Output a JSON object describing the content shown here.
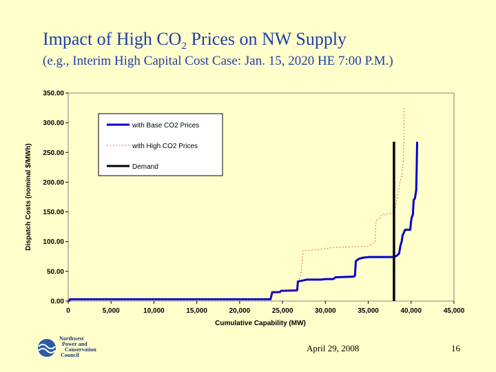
{
  "slide": {
    "title_main": "Impact of High CO",
    "title_sub": "2",
    "title_tail": " Prices on NW Supply",
    "subtitle": "(e.g., Interim High Capital Cost Case: Jan. 15, 2020 HE 7:00 P.M.)",
    "date": "April 29, 2008",
    "page_number": "16",
    "logo_lines": [
      "Northwest",
      "Power and",
      "Conservation",
      "Council"
    ]
  },
  "colors": {
    "plot_bg": "#ffffcc",
    "base_series": "#0000cc",
    "high_series": "#e0301e",
    "demand": "#000000",
    "title": "#1f3fa6"
  },
  "chart_data": {
    "type": "line",
    "xlabel": "Cumulative Capability (MW)",
    "ylabel": "Dispatch Costs (nominal $/MWh)",
    "xlim": [
      0,
      45000
    ],
    "ylim": [
      0,
      350
    ],
    "x_ticks": [
      "0",
      "5,000",
      "10,000",
      "15,000",
      "20,000",
      "25,000",
      "30,000",
      "35,000",
      "40,000",
      "45,000"
    ],
    "y_ticks": [
      "0.00",
      "50.00",
      "100.00",
      "150.00",
      "200.00",
      "250.00",
      "300.00",
      "350.00"
    ],
    "legend_position": "top-left",
    "series": [
      {
        "name": "with Base CO2 Prices",
        "style": "solid",
        "points": [
          [
            0,
            0
          ],
          [
            100,
            0
          ],
          [
            200,
            3
          ],
          [
            23600,
            3
          ],
          [
            23800,
            15
          ],
          [
            24700,
            15
          ],
          [
            24800,
            17
          ],
          [
            26700,
            18
          ],
          [
            26800,
            33
          ],
          [
            27200,
            34
          ],
          [
            27800,
            36
          ],
          [
            29500,
            36
          ],
          [
            30000,
            37
          ],
          [
            30900,
            37
          ],
          [
            31200,
            40
          ],
          [
            33300,
            41
          ],
          [
            33450,
            43
          ],
          [
            33550,
            67
          ],
          [
            33900,
            71
          ],
          [
            34400,
            73
          ],
          [
            35100,
            74
          ],
          [
            38000,
            74
          ],
          [
            38300,
            76
          ],
          [
            38600,
            80
          ],
          [
            38750,
            93
          ],
          [
            38900,
            100
          ],
          [
            39000,
            110
          ],
          [
            39150,
            115
          ],
          [
            39300,
            120
          ],
          [
            39900,
            120
          ],
          [
            40000,
            135
          ],
          [
            40100,
            142
          ],
          [
            40200,
            145
          ],
          [
            40300,
            170
          ],
          [
            40450,
            173
          ],
          [
            40600,
            187
          ],
          [
            40650,
            225
          ],
          [
            40700,
            268
          ]
        ]
      },
      {
        "name": "with High CO2 Prices",
        "style": "dotted",
        "points": [
          [
            0,
            0
          ],
          [
            100,
            0
          ],
          [
            200,
            3
          ],
          [
            23600,
            3
          ],
          [
            23800,
            15
          ],
          [
            24700,
            15
          ],
          [
            24800,
            17
          ],
          [
            26700,
            18
          ],
          [
            26900,
            35
          ],
          [
            27100,
            42
          ],
          [
            27250,
            60
          ],
          [
            27400,
            85
          ],
          [
            28800,
            86
          ],
          [
            29200,
            87
          ],
          [
            31000,
            90
          ],
          [
            32500,
            91
          ],
          [
            35000,
            92
          ],
          [
            35800,
            100
          ],
          [
            35900,
            135
          ],
          [
            36400,
            140
          ],
          [
            36600,
            145
          ],
          [
            37700,
            148
          ],
          [
            38000,
            150
          ],
          [
            38200,
            160
          ],
          [
            38400,
            175
          ],
          [
            38700,
            200
          ],
          [
            38900,
            210
          ],
          [
            39000,
            225
          ],
          [
            39100,
            235
          ],
          [
            39200,
            325
          ]
        ]
      },
      {
        "name": "Demand",
        "style": "solid-thick",
        "points": [
          [
            38000,
            0
          ],
          [
            38000,
            268
          ]
        ]
      }
    ]
  }
}
